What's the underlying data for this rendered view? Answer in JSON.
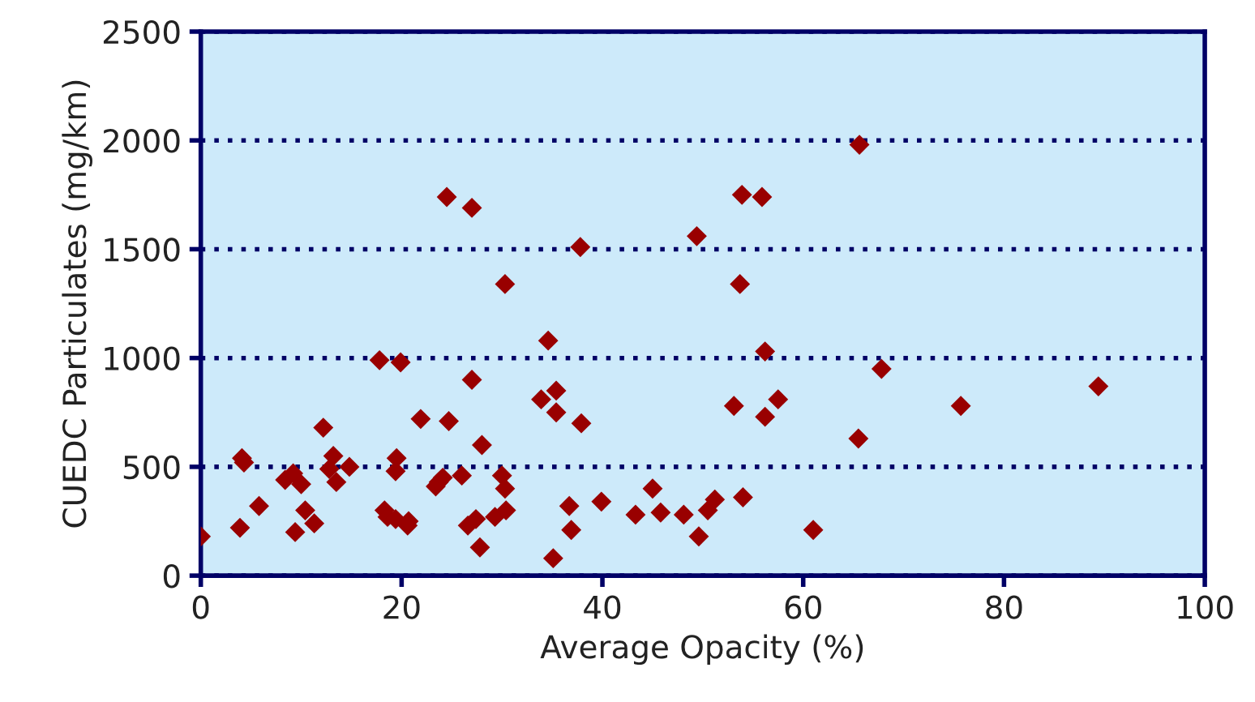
{
  "chart_data": {
    "type": "scatter",
    "xlabel": "Average Opacity (%)",
    "ylabel": "CUEDC Particulates (mg/km)",
    "xlim": [
      0,
      100
    ],
    "xticks": [
      0,
      20,
      40,
      60,
      80,
      100
    ],
    "ylim": [
      0,
      2500
    ],
    "yticks": [
      0,
      500,
      1000,
      1500,
      2000,
      2500
    ],
    "grid": "y",
    "marker": "diamond",
    "legend": false,
    "series": [
      {
        "color": "#990000",
        "x": [
          0,
          3.9,
          4.1,
          4.3,
          5.8,
          9.4,
          8.4,
          9.2,
          10.0,
          10.4,
          11.3,
          12.2,
          13.2,
          12.8,
          13.5,
          14.8,
          17.8,
          19.9,
          18.3,
          18.6,
          19.4,
          19.5,
          19.4,
          20.6,
          20.7,
          21.9,
          24.7,
          23.4,
          23.7,
          24.1,
          26.0,
          27.0,
          28.0,
          26.6,
          27.4,
          27.8,
          29.3,
          30.0,
          30.3,
          30.4,
          34.6,
          33.9,
          35.4,
          35.4,
          37.9,
          36.7,
          36.9,
          35.1,
          39.9,
          43.3,
          45.0,
          45.8,
          48.1,
          49.6,
          50.5,
          51.2,
          54.0,
          53.1,
          56.2,
          56.2,
          57.5,
          61.0,
          65.5,
          67.8,
          75.7,
          89.4,
          24.5,
          27.0,
          30.3,
          37.8,
          49.4,
          53.9,
          55.9,
          53.7,
          65.6
        ],
        "values": [
          180,
          220,
          540,
          520,
          320,
          200,
          440,
          470,
          420,
          300,
          240,
          680,
          550,
          490,
          430,
          500,
          990,
          980,
          300,
          270,
          260,
          540,
          480,
          230,
          250,
          720,
          710,
          410,
          430,
          450,
          460,
          900,
          600,
          230,
          260,
          130,
          270,
          460,
          400,
          300,
          1080,
          810,
          850,
          750,
          700,
          320,
          210,
          80,
          340,
          280,
          400,
          290,
          280,
          180,
          300,
          350,
          360,
          780,
          1030,
          730,
          810,
          210,
          630,
          950,
          780,
          870,
          1740,
          1690,
          1340,
          1510,
          1560,
          1750,
          1740,
          1340,
          1980
        ]
      }
    ]
  }
}
